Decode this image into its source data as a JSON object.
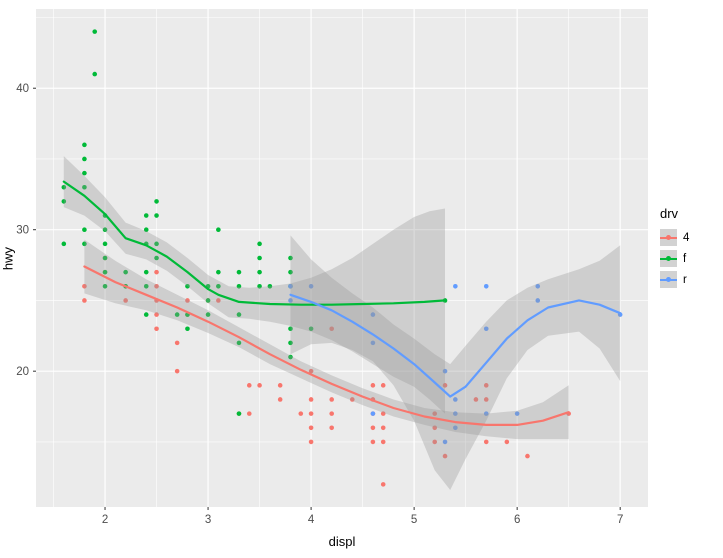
{
  "figure": {
    "background": "#FFFFFF",
    "panel_background": "#EBEBEB",
    "grid_color": "#FFFFFF",
    "ribbon_color": "#999999",
    "ribbon_opacity": 0.4,
    "axis_text_color": "#4D4D4D",
    "tick_mark_color": "#333333"
  },
  "chart_data": {
    "type": "scatter",
    "title": "",
    "xlabel": "displ",
    "ylabel": "hwy",
    "xlim": [
      1.33,
      7.27
    ],
    "ylim": [
      10.4,
      45.6
    ],
    "x_ticks": [
      2,
      3,
      4,
      5,
      6,
      7
    ],
    "y_ticks": [
      20,
      30,
      40
    ],
    "x_minor": [
      1.5,
      2.5,
      3.5,
      4.5,
      5.5,
      6.5
    ],
    "y_minor": [
      15,
      25,
      35,
      45
    ],
    "grid": true,
    "legend": {
      "title": "drv",
      "position": "right",
      "entries": [
        {
          "label": "4",
          "color": "#F8766D"
        },
        {
          "label": "f",
          "color": "#00BA38"
        },
        {
          "label": "r",
          "color": "#619CFF"
        }
      ]
    },
    "series": [
      {
        "name": "4",
        "color": "#F8766D",
        "points": [
          [
            1.8,
            26
          ],
          [
            1.8,
            25
          ],
          [
            2.0,
            28
          ],
          [
            2.0,
            27
          ],
          [
            2.2,
            26
          ],
          [
            2.2,
            25
          ],
          [
            2.5,
            26
          ],
          [
            2.5,
            25
          ],
          [
            2.5,
            24
          ],
          [
            2.5,
            23
          ],
          [
            2.5,
            27
          ],
          [
            2.7,
            20
          ],
          [
            2.7,
            22
          ],
          [
            2.8,
            25
          ],
          [
            2.8,
            24
          ],
          [
            3.0,
            25
          ],
          [
            3.1,
            25
          ],
          [
            3.3,
            17
          ],
          [
            3.4,
            17
          ],
          [
            3.4,
            19
          ],
          [
            3.5,
            19
          ],
          [
            3.7,
            19
          ],
          [
            3.7,
            18
          ],
          [
            3.9,
            17
          ],
          [
            4.0,
            17
          ],
          [
            4.0,
            16
          ],
          [
            4.0,
            18
          ],
          [
            4.0,
            15
          ],
          [
            4.0,
            20
          ],
          [
            4.2,
            23
          ],
          [
            4.2,
            17
          ],
          [
            4.2,
            16
          ],
          [
            4.2,
            18
          ],
          [
            4.4,
            18
          ],
          [
            4.6,
            17
          ],
          [
            4.6,
            18
          ],
          [
            4.6,
            15
          ],
          [
            4.6,
            16
          ],
          [
            4.6,
            19
          ],
          [
            4.7,
            19
          ],
          [
            4.7,
            17
          ],
          [
            4.7,
            16
          ],
          [
            4.7,
            15
          ],
          [
            4.7,
            12
          ],
          [
            5.2,
            17
          ],
          [
            5.2,
            15
          ],
          [
            5.2,
            16
          ],
          [
            5.3,
            14
          ],
          [
            5.3,
            19
          ],
          [
            5.6,
            18
          ],
          [
            5.7,
            15
          ],
          [
            5.7,
            18
          ],
          [
            5.7,
            19
          ],
          [
            5.9,
            15
          ],
          [
            6.1,
            14
          ],
          [
            6.5,
            17
          ]
        ],
        "smooth": {
          "x": [
            1.8,
            2.1,
            2.4,
            2.7,
            3.0,
            3.3,
            3.6,
            3.9,
            4.2,
            4.5,
            4.8,
            5.1,
            5.4,
            5.7,
            6.0,
            6.25,
            6.5
          ],
          "y": [
            27.4,
            26.3,
            25.4,
            24.5,
            23.5,
            22.4,
            21.2,
            20.1,
            19.1,
            18.2,
            17.4,
            16.8,
            16.4,
            16.2,
            16.2,
            16.5,
            17.1
          ]
        },
        "band": {
          "x": [
            1.8,
            2.1,
            2.4,
            2.7,
            3.0,
            3.3,
            3.6,
            3.9,
            4.2,
            4.5,
            4.8,
            5.1,
            5.4,
            5.7,
            6.0,
            6.25,
            6.5
          ],
          "upper": [
            29.3,
            27.8,
            26.5,
            25.4,
            24.3,
            23.1,
            21.9,
            20.7,
            19.7,
            18.8,
            18.0,
            17.4,
            17.1,
            17.0,
            17.2,
            17.8,
            19.0
          ],
          "lower": [
            25.5,
            24.8,
            24.3,
            23.6,
            22.7,
            21.7,
            20.5,
            19.5,
            18.5,
            17.6,
            16.8,
            16.2,
            15.7,
            15.4,
            15.2,
            15.2,
            15.2
          ]
        }
      },
      {
        "name": "f",
        "color": "#00BA38",
        "points": [
          [
            1.6,
            33
          ],
          [
            1.6,
            32
          ],
          [
            1.6,
            29
          ],
          [
            1.8,
            36
          ],
          [
            1.8,
            34
          ],
          [
            1.8,
            33
          ],
          [
            1.8,
            35
          ],
          [
            1.8,
            30
          ],
          [
            1.8,
            29
          ],
          [
            1.9,
            44
          ],
          [
            1.9,
            41
          ],
          [
            2.0,
            31
          ],
          [
            2.0,
            30
          ],
          [
            2.0,
            29
          ],
          [
            2.0,
            28
          ],
          [
            2.0,
            27
          ],
          [
            2.0,
            26
          ],
          [
            2.2,
            27
          ],
          [
            2.2,
            26
          ],
          [
            2.4,
            31
          ],
          [
            2.4,
            30
          ],
          [
            2.4,
            29
          ],
          [
            2.4,
            27
          ],
          [
            2.4,
            26
          ],
          [
            2.4,
            24
          ],
          [
            2.5,
            32
          ],
          [
            2.5,
            31
          ],
          [
            2.5,
            29
          ],
          [
            2.5,
            28
          ],
          [
            2.7,
            24
          ],
          [
            2.8,
            26
          ],
          [
            2.8,
            24
          ],
          [
            2.8,
            23
          ],
          [
            3.0,
            26
          ],
          [
            3.0,
            25
          ],
          [
            3.0,
            24
          ],
          [
            3.1,
            30
          ],
          [
            3.1,
            27
          ],
          [
            3.1,
            26
          ],
          [
            3.3,
            27
          ],
          [
            3.3,
            26
          ],
          [
            3.3,
            24
          ],
          [
            3.3,
            22
          ],
          [
            3.3,
            17
          ],
          [
            3.5,
            29
          ],
          [
            3.5,
            28
          ],
          [
            3.5,
            27
          ],
          [
            3.5,
            26
          ],
          [
            3.6,
            26
          ],
          [
            3.8,
            28
          ],
          [
            3.8,
            27
          ],
          [
            3.8,
            26
          ],
          [
            3.8,
            23
          ],
          [
            3.8,
            22
          ],
          [
            3.8,
            21
          ],
          [
            4.0,
            23
          ],
          [
            5.3,
            25
          ]
        ],
        "smooth": {
          "x": [
            1.6,
            1.8,
            2.0,
            2.2,
            2.4,
            2.6,
            2.8,
            3.0,
            3.1,
            3.3,
            3.6,
            3.9,
            4.2,
            4.5,
            4.8,
            5.1,
            5.3
          ],
          "y": [
            33.4,
            32.4,
            31.1,
            29.4,
            28.9,
            28.1,
            27.0,
            25.8,
            25.4,
            24.9,
            24.75,
            24.7,
            24.7,
            24.75,
            24.8,
            24.9,
            25.0
          ]
        },
        "band": {
          "x": [
            1.6,
            1.8,
            2.0,
            2.2,
            2.4,
            2.6,
            2.8,
            3.0,
            3.2,
            3.4,
            3.6,
            3.8,
            4.0,
            4.2,
            4.4,
            4.6,
            4.8,
            5.0,
            5.15,
            5.3
          ],
          "upper": [
            35.2,
            33.8,
            32.3,
            30.5,
            29.9,
            29.1,
            28.0,
            26.8,
            26.0,
            25.9,
            26.0,
            26.2,
            26.6,
            27.2,
            28.0,
            29.0,
            30.0,
            30.9,
            31.3,
            31.5
          ],
          "lower": [
            31.6,
            31.0,
            29.9,
            28.3,
            27.9,
            27.1,
            26.0,
            24.8,
            23.8,
            23.7,
            23.5,
            23.2,
            22.8,
            22.2,
            21.4,
            20.5,
            19.6,
            18.9,
            18.0,
            17.0
          ]
        }
      },
      {
        "name": "r",
        "color": "#619CFF",
        "points": [
          [
            3.8,
            26
          ],
          [
            3.8,
            25
          ],
          [
            4.0,
            26
          ],
          [
            4.6,
            24
          ],
          [
            4.6,
            22
          ],
          [
            4.6,
            17
          ],
          [
            5.3,
            20
          ],
          [
            5.3,
            15
          ],
          [
            5.4,
            26
          ],
          [
            5.4,
            18
          ],
          [
            5.4,
            17
          ],
          [
            5.4,
            16
          ],
          [
            5.7,
            26
          ],
          [
            5.7,
            23
          ],
          [
            5.7,
            17
          ],
          [
            6.0,
            17
          ],
          [
            6.2,
            26
          ],
          [
            6.2,
            25
          ],
          [
            7.0,
            24
          ]
        ],
        "smooth": {
          "x": [
            3.8,
            4.0,
            4.2,
            4.4,
            4.6,
            4.8,
            5.0,
            5.2,
            5.35,
            5.5,
            5.7,
            5.9,
            6.1,
            6.3,
            6.6,
            6.8,
            7.0
          ],
          "y": [
            25.4,
            24.9,
            24.3,
            23.5,
            22.6,
            21.6,
            20.5,
            19.2,
            18.2,
            18.9,
            20.6,
            22.3,
            23.6,
            24.5,
            25.0,
            24.7,
            24.1
          ]
        },
        "band": {
          "x": [
            3.8,
            4.0,
            4.2,
            4.4,
            4.6,
            4.8,
            5.0,
            5.2,
            5.35,
            5.5,
            5.7,
            5.9,
            6.1,
            6.3,
            6.6,
            6.8,
            7.0
          ],
          "upper": [
            29.6,
            27.9,
            26.6,
            25.5,
            24.5,
            23.3,
            22.3,
            21.2,
            20.5,
            21.8,
            23.5,
            25.0,
            25.9,
            26.5,
            27.2,
            27.8,
            28.9
          ],
          "lower": [
            21.2,
            21.9,
            22.0,
            21.5,
            20.7,
            19.0,
            16.5,
            13.0,
            11.6,
            13.8,
            16.5,
            19.5,
            21.5,
            22.5,
            22.8,
            21.6,
            19.3
          ]
        }
      }
    ]
  }
}
